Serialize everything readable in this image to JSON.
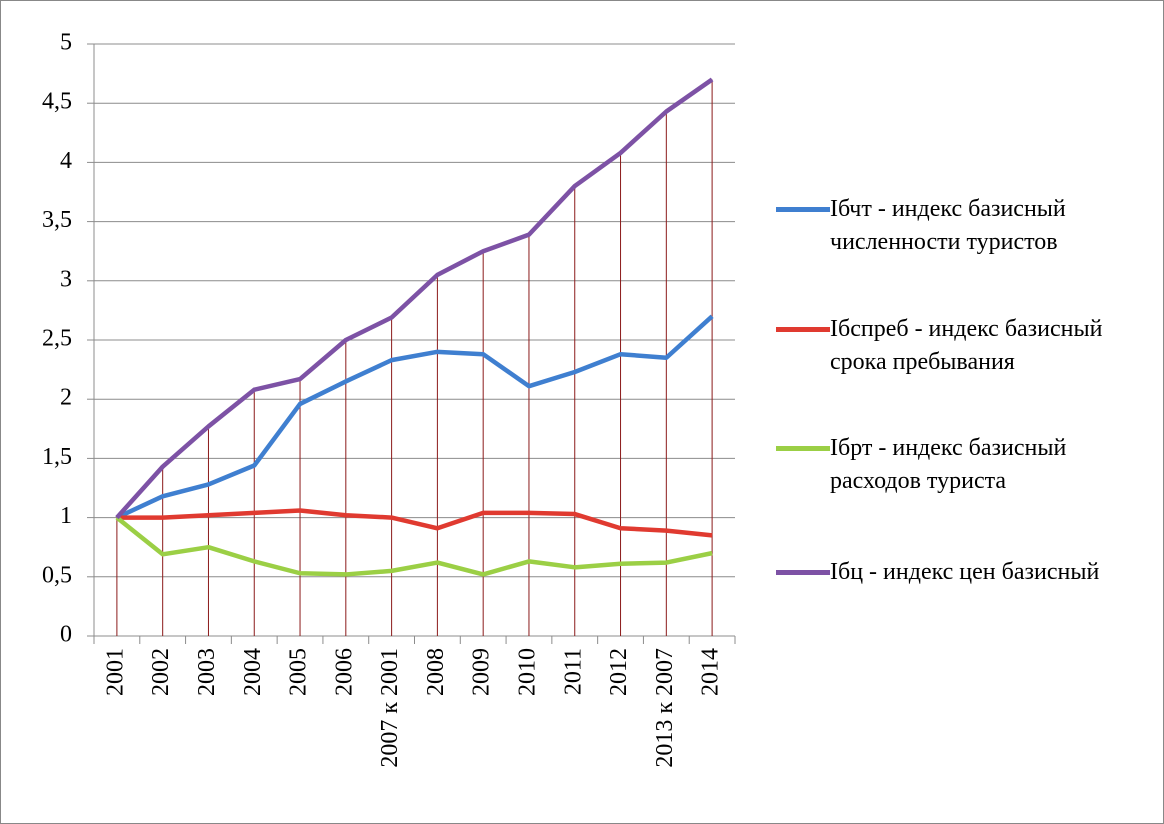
{
  "chart_data": {
    "type": "line",
    "categories": [
      "2001",
      "2002",
      "2003",
      "2004",
      "2005",
      "2006",
      "2007 к 2001",
      "2008",
      "2009",
      "2010",
      "2011",
      "2012",
      "2013 к 2007",
      "2014"
    ],
    "series": [
      {
        "name": "Iбчт - индекс базисный численности туристов",
        "color": "#3f7fd0",
        "values": [
          1,
          1.18,
          1.28,
          1.44,
          1.96,
          2.15,
          2.33,
          2.4,
          2.38,
          2.11,
          2.23,
          2.38,
          2.35,
          2.7
        ]
      },
      {
        "name": "Iбспреб - индекс базисный срока пребывания",
        "color": "#e03a30",
        "values": [
          1,
          1.0,
          1.02,
          1.04,
          1.06,
          1.02,
          1.0,
          0.91,
          1.04,
          1.04,
          1.03,
          0.91,
          0.89,
          0.85
        ]
      },
      {
        "name": "Iбрт - индекс базисный расходов туриста",
        "color": "#9bcf45",
        "values": [
          1,
          0.69,
          0.75,
          0.63,
          0.53,
          0.52,
          0.55,
          0.62,
          0.52,
          0.63,
          0.58,
          0.61,
          0.62,
          0.7
        ]
      },
      {
        "name": "Iбц - индекс цен базисный",
        "color": "#7d52a5",
        "values": [
          1,
          1.43,
          1.77,
          2.08,
          2.17,
          2.5,
          2.69,
          3.05,
          3.25,
          3.39,
          3.8,
          4.08,
          4.43,
          4.7
        ]
      }
    ],
    "ylim": [
      0,
      5
    ],
    "yticks": [
      0,
      {
        "value": 0.5,
        "label": "0,5"
      },
      1,
      {
        "value": 1.5,
        "label": "1,5"
      },
      2,
      {
        "value": 2.5,
        "label": "2,5"
      },
      3,
      {
        "value": 3.5,
        "label": "3,5"
      },
      4,
      {
        "value": 4.5,
        "label": "4,5"
      },
      5
    ],
    "grid": true,
    "drop_lines": true,
    "legend": "right"
  }
}
